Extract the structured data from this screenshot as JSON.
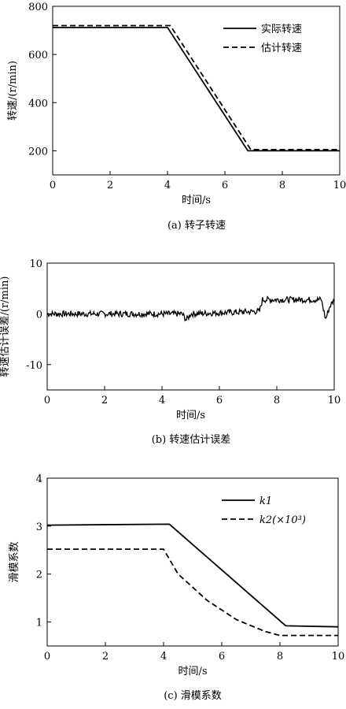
{
  "chart_data": [
    {
      "type": "line",
      "caption": "(a) 转子转速",
      "xlabel": "时间/s",
      "ylabel": "转速/(r/min)",
      "xlim": [
        0,
        10
      ],
      "ylim": [
        100,
        800
      ],
      "xticks": [
        0,
        2,
        4,
        6,
        8,
        10
      ],
      "yticks": [
        200,
        400,
        600,
        800
      ],
      "legend_position": "top-right",
      "series": [
        {
          "name": "实际转速",
          "style": "solid",
          "x": [
            0,
            4,
            6.8,
            10
          ],
          "y": [
            712,
            712,
            200,
            200
          ]
        },
        {
          "name": "估计转速",
          "style": "dashed",
          "x": [
            0,
            4.1,
            6.9,
            10
          ],
          "y": [
            720,
            720,
            205,
            205
          ]
        }
      ]
    },
    {
      "type": "line",
      "caption": "(b) 转速估计误差",
      "xlabel": "时间/s",
      "ylabel": "转速估计误差/(r/min)",
      "xlim": [
        0,
        10
      ],
      "ylim": [
        -15,
        10
      ],
      "xticks": [
        0,
        2,
        4,
        6,
        8,
        10
      ],
      "yticks": [
        -10,
        0,
        10
      ],
      "series": [
        {
          "style": "solid",
          "x": [
            0,
            4.7,
            4.85,
            5.0,
            7.4,
            7.5,
            9.55,
            9.7,
            9.85,
            10
          ],
          "y": [
            0,
            0,
            -1.2,
            0,
            0.5,
            2.8,
            2.8,
            -1.0,
            1.5,
            2.8
          ]
        }
      ]
    },
    {
      "type": "line",
      "caption": "(c) 滑模系数",
      "xlabel": "时间/s",
      "ylabel": "滑模系数",
      "xlim": [
        0,
        10
      ],
      "ylim": [
        0.5,
        4
      ],
      "xticks": [
        0,
        2,
        4,
        6,
        8,
        10
      ],
      "yticks": [
        1,
        2,
        3,
        4
      ],
      "legend_position": "top-right",
      "series": [
        {
          "name": "k1",
          "style": "solid",
          "x": [
            0,
            4.2,
            8.2,
            10
          ],
          "y": [
            3.02,
            3.04,
            0.92,
            0.9
          ]
        },
        {
          "name": "k2(×10³)",
          "style": "dashed",
          "x": [
            0,
            4.0,
            4.5,
            5.5,
            6.5,
            7.5,
            8.0,
            10
          ],
          "y": [
            2.52,
            2.52,
            2.0,
            1.45,
            1.05,
            0.8,
            0.72,
            0.72
          ]
        }
      ]
    }
  ]
}
